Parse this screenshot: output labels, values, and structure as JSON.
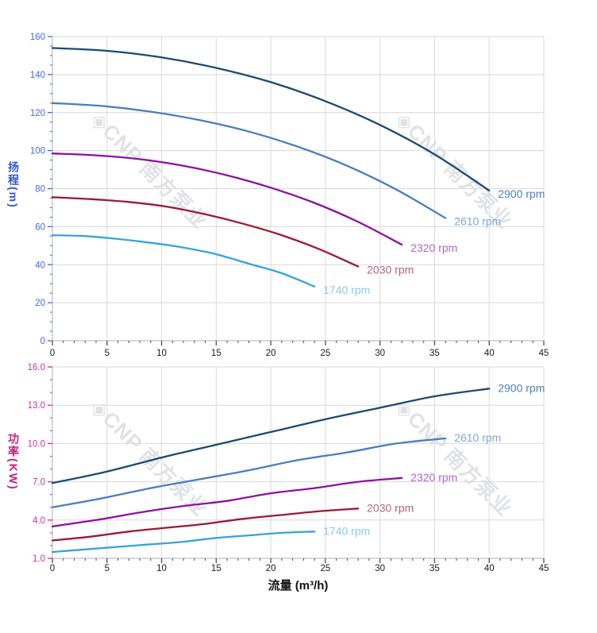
{
  "title": "pump performance curves",
  "watermark": {
    "logo": "◈",
    "text": "CNP 南方泵业",
    "color": "#DDDFE4"
  },
  "colors": {
    "background": "#FFFFFF",
    "grid": "#D9D9D9",
    "axis": "#AAB2BD",
    "x_tick": "#4D4D4D",
    "x_label": "#1A1A1A",
    "head_axis": "#4169E1",
    "head_title": "#3355D6",
    "power_axis": "#CC3399",
    "power_title": "#C02080"
  },
  "chart_data": [
    {
      "type": "line",
      "title": "",
      "xlabel": "流量 (m³/h)",
      "ylabel": "扬程(m)",
      "xlim": [
        0,
        45
      ],
      "ylim": [
        0,
        160
      ],
      "x_ticks": [
        0,
        5,
        10,
        15,
        20,
        25,
        30,
        35,
        40,
        45
      ],
      "x_minor_step": 1,
      "y_ticks": [
        0,
        20,
        40,
        60,
        80,
        100,
        120,
        140,
        160
      ],
      "y_minor_step": 5,
      "y_tick_decimals": 0,
      "grid": true,
      "tick_color": "#4169E1",
      "axis_title_color": "#3355D6",
      "legend_position": "end-of-line",
      "series": [
        {
          "name": "2900 rpm",
          "color": "#1C4A73",
          "label_color": "#4E80BE",
          "x": [
            0,
            5,
            10,
            15,
            20,
            25,
            30,
            35,
            40
          ],
          "y": [
            154,
            152.5,
            149,
            143.5,
            136,
            126,
            113.5,
            98,
            79
          ]
        },
        {
          "name": "2610 rpm",
          "color": "#4A7EBB",
          "label_color": "#7FA7DA",
          "x": [
            0,
            4.5,
            9,
            13.5,
            18,
            22.5,
            27,
            31.5,
            36
          ],
          "y": [
            125,
            123.5,
            120.5,
            116,
            110,
            102,
            92,
            79.5,
            64.5
          ]
        },
        {
          "name": "2320 rpm",
          "color": "#8E10A0",
          "label_color": "#AE66CB",
          "x": [
            0,
            4,
            8,
            12,
            16,
            20,
            24,
            28,
            32
          ],
          "y": [
            98.5,
            97.5,
            95.5,
            92,
            87,
            80.5,
            72.5,
            62.5,
            50.5
          ]
        },
        {
          "name": "2030 rpm",
          "color": "#9C1A33",
          "label_color": "#B26478",
          "x": [
            0,
            3.5,
            7,
            10.5,
            14,
            17.5,
            21,
            24.5,
            28
          ],
          "y": [
            75.5,
            74.5,
            73,
            70.5,
            66.5,
            61.5,
            55.5,
            48,
            39
          ]
        },
        {
          "name": "1740 rpm",
          "color": "#38A3DA",
          "label_color": "#8FC8EC",
          "x": [
            0,
            3,
            6,
            9,
            12,
            15,
            18,
            21,
            24
          ],
          "y": [
            55.5,
            55,
            53.5,
            51.5,
            49,
            45.5,
            40.5,
            35.5,
            28.5
          ]
        }
      ]
    },
    {
      "type": "line",
      "title": "",
      "xlabel": "流量 (m³/h)",
      "ylabel": "功率(KW)",
      "xlim": [
        0,
        45
      ],
      "ylim": [
        1,
        16
      ],
      "x_ticks": [
        0,
        5,
        10,
        15,
        20,
        25,
        30,
        35,
        40,
        45
      ],
      "x_minor_step": 1,
      "y_ticks": [
        1,
        4,
        7,
        10,
        13,
        16
      ],
      "y_minor_step": 1,
      "y_tick_decimals": 1,
      "grid": true,
      "tick_color": "#CC3399",
      "axis_title_color": "#C02080",
      "legend_position": "end-of-line",
      "series": [
        {
          "name": "2900 rpm",
          "color": "#1C4A73",
          "label_color": "#4E80BE",
          "x": [
            0,
            5,
            10,
            15,
            20,
            25,
            30,
            35,
            40
          ],
          "y": [
            6.9,
            7.8,
            8.9,
            9.9,
            10.9,
            11.9,
            12.8,
            13.7,
            14.3
          ]
        },
        {
          "name": "2610 rpm",
          "color": "#4A7EBB",
          "label_color": "#7FA7DA",
          "x": [
            0,
            4.5,
            9,
            13.5,
            18,
            22.5,
            27,
            31.5,
            36
          ],
          "y": [
            5.0,
            5.7,
            6.5,
            7.2,
            7.9,
            8.7,
            9.3,
            10.0,
            10.4
          ]
        },
        {
          "name": "2320 rpm",
          "color": "#8E10A0",
          "label_color": "#AE66CB",
          "x": [
            0,
            4,
            8,
            12,
            16,
            20,
            24,
            28,
            32
          ],
          "y": [
            3.5,
            4.0,
            4.6,
            5.1,
            5.5,
            6.1,
            6.5,
            7.0,
            7.3
          ]
        },
        {
          "name": "2030 rpm",
          "color": "#9C1A33",
          "label_color": "#B26478",
          "x": [
            0,
            3.5,
            7,
            10.5,
            14,
            17.5,
            21,
            24.5,
            28
          ],
          "y": [
            2.4,
            2.7,
            3.1,
            3.4,
            3.7,
            4.1,
            4.4,
            4.7,
            4.9
          ]
        },
        {
          "name": "1740 rpm",
          "color": "#38A3DA",
          "label_color": "#8FC8EC",
          "x": [
            0,
            3,
            6,
            9,
            12,
            15,
            18,
            21,
            24
          ],
          "y": [
            1.5,
            1.7,
            1.9,
            2.1,
            2.3,
            2.6,
            2.8,
            3.0,
            3.1
          ]
        }
      ]
    }
  ]
}
